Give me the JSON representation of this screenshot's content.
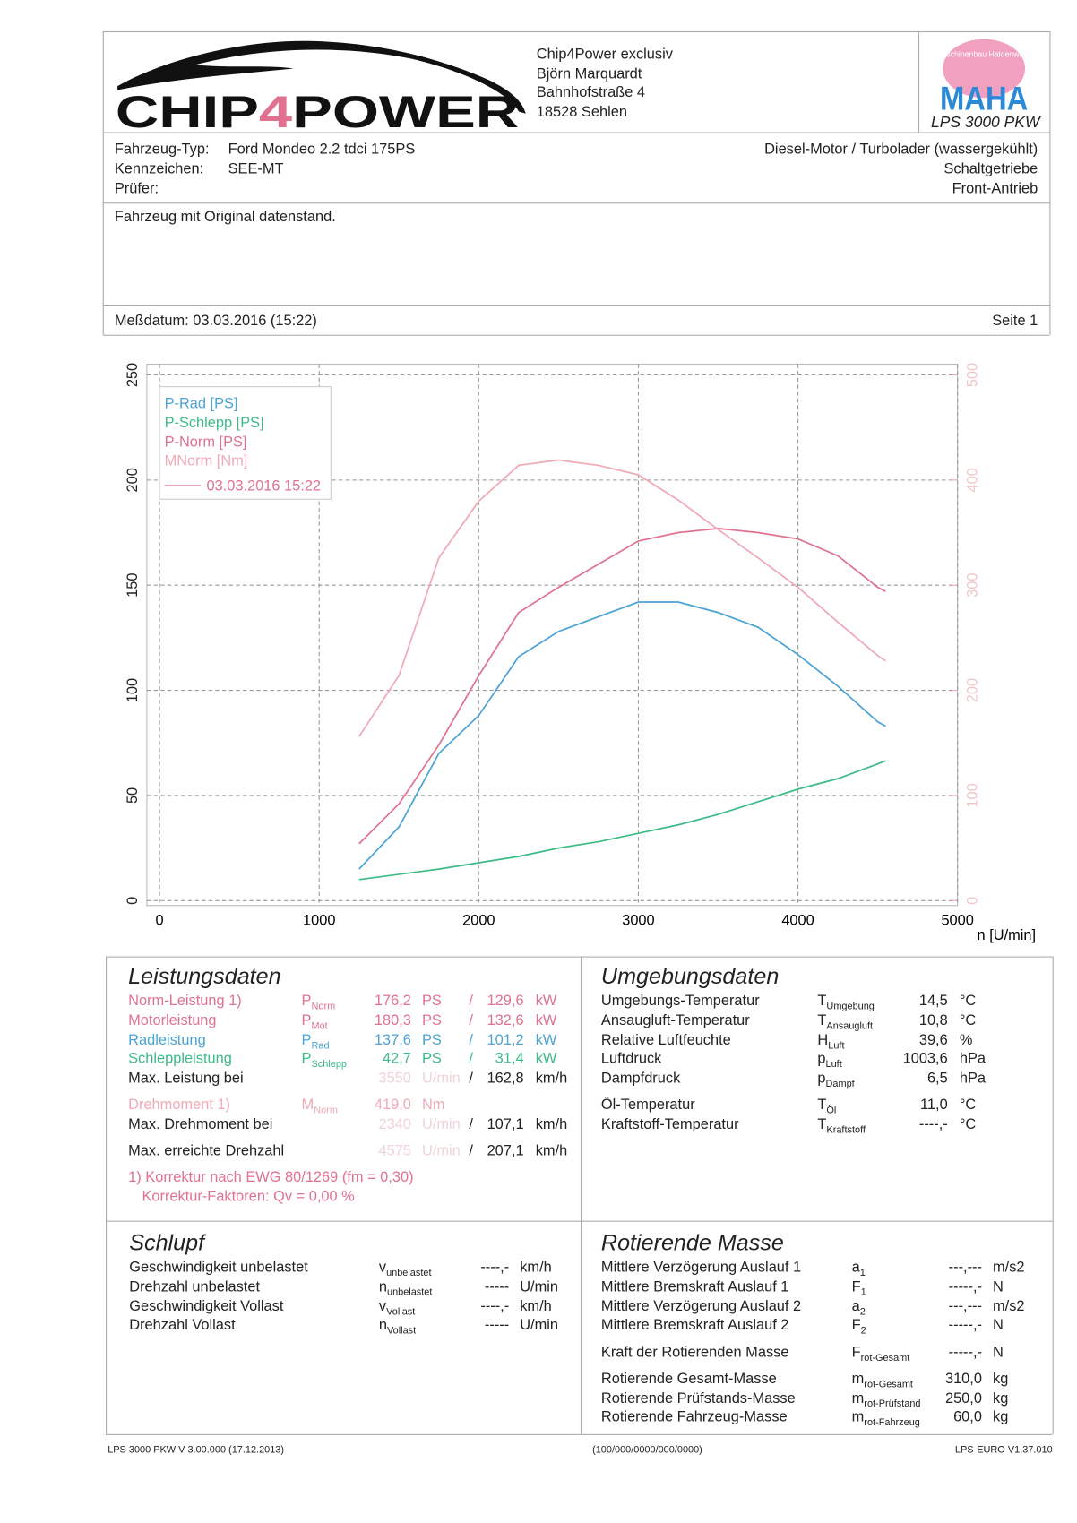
{
  "header": {
    "logo": {
      "parts": [
        "CHIP",
        "4",
        "POWER"
      ]
    },
    "company_lines": [
      "Chip4Power exclusiv",
      "Björn Marquardt",
      "Bahnhofstraße 4",
      "18528 Sehlen"
    ],
    "maha_ring": "Maschinenbau Haldenwang",
    "maha": "MAHA",
    "device": "LPS 3000 PKW"
  },
  "vehicle": {
    "labels": [
      "Fahrzeug-Typ:",
      "Kennzeichen:",
      "Prüfer:"
    ],
    "values": [
      "Ford Mondeo 2.2 tdci 175PS",
      "SEE-MT"
    ],
    "right": [
      "Diesel-Motor / Turbolader (wassergekühlt)",
      "Schaltgetriebe",
      "Front-Antrieb"
    ]
  },
  "note": "Fahrzeug mit Original datenstand.",
  "date_line": "Meßdatum: 03.03.2016 (15:22)",
  "page": "Seite 1",
  "chart_data": {
    "type": "line",
    "x_label": "n [U/min]",
    "x": [
      1250,
      1500,
      1750,
      2000,
      2250,
      2500,
      2750,
      3000,
      3250,
      3500,
      3750,
      4000,
      4250,
      4500,
      4550
    ],
    "xlim": [
      0,
      5000
    ],
    "xticks": [
      0,
      1000,
      2000,
      3000,
      4000,
      5000
    ],
    "ylim": [
      0,
      250
    ],
    "yticks": [
      0,
      50,
      100,
      150,
      200,
      250
    ],
    "y2lim": [
      0,
      500
    ],
    "y2ticks": [
      0,
      100,
      200,
      300,
      400,
      500
    ],
    "grid": true,
    "series": [
      {
        "name": "P-Rad [PS]",
        "color": "#4ba3d6",
        "values": [
          15,
          35,
          70,
          88,
          116,
          128,
          135,
          142,
          142,
          137,
          130,
          117,
          102,
          85,
          83
        ]
      },
      {
        "name": "P-Schlepp [PS]",
        "color": "#3dbb86",
        "values": [
          10,
          12.5,
          15,
          18,
          21,
          25,
          28,
          32,
          36,
          41,
          47,
          53,
          58,
          65,
          66.5
        ]
      },
      {
        "name": "P-Norm [PS]",
        "color": "#e0728f",
        "values": [
          27,
          46,
          74,
          107,
          137,
          149,
          160,
          171,
          175,
          177,
          175,
          172,
          164,
          149,
          147
        ]
      },
      {
        "name": "MNorm [Nm]",
        "color": "#f0aab6",
        "axis": "y2",
        "values": [
          156,
          214,
          326,
          380,
          414,
          419,
          414,
          405,
          381,
          353,
          326,
          298,
          265,
          233,
          228
        ]
      }
    ],
    "legend_run": "03.03.2016 15:22"
  },
  "leistung": {
    "title": "Leistungsdaten",
    "rows": [
      {
        "label": "Norm-Leistung 1)",
        "sym": "P",
        "sub": "Norm",
        "value": "176,2",
        "unit": "PS",
        "sep": "/",
        "value2": "129,6",
        "unit2": "kW",
        "color": "#e0728f"
      },
      {
        "label": "Motorleistung",
        "sym": "P",
        "sub": "Mot",
        "value": "180,3",
        "unit": "PS",
        "sep": "/",
        "value2": "132,6",
        "unit2": "kW",
        "color": "#e0728f"
      },
      {
        "label": "Radleistung",
        "sym": "P",
        "sub": "Rad",
        "value": "137,6",
        "unit": "PS",
        "sep": "/",
        "value2": "101,2",
        "unit2": "kW",
        "color": "#4ba3d6"
      },
      {
        "label": "Schleppleistung",
        "sym": "P",
        "sub": "Schlepp",
        "value": "42,7",
        "unit": "PS",
        "sep": "/",
        "value2": "31,4",
        "unit2": "kW",
        "color": "#3dbb86"
      },
      {
        "label": "Max. Leistung bei",
        "value": "3550",
        "unit": "U/min",
        "sep": "/",
        "value2": "162,8",
        "unit2": "km/h",
        "value_color": "#f0d4d8"
      },
      {
        "label": "Drehmoment 1)",
        "sym": "M",
        "sub": "Norm",
        "value": "419,0",
        "unit": "Nm",
        "color": "#f0aab6"
      },
      {
        "label": "Max. Drehmoment bei",
        "value": "2340",
        "unit": "U/min",
        "sep": "/",
        "value2": "107,1",
        "unit2": "km/h",
        "value_color": "#f0d4d8"
      },
      {
        "label": "Max. erreichte Drehzahl",
        "value": "4575",
        "unit": "U/min",
        "sep": "/",
        "value2": "207,1",
        "unit2": "km/h",
        "value_color": "#f0d4d8"
      }
    ],
    "footnotes": [
      "1) Korrektur nach EWG 80/1269 (fm = 0,30)",
      "Korrektur-Faktoren: Qv = 0,00 %"
    ]
  },
  "umgebung": {
    "title": "Umgebungsdaten",
    "rows": [
      {
        "label": "Umgebungs-Temperatur",
        "sym": "T",
        "sub": "Umgebung",
        "value": "14,5",
        "unit": "°C"
      },
      {
        "label": "Ansaugluft-Temperatur",
        "sym": "T",
        "sub": "Ansaugluft",
        "value": "10,8",
        "unit": "°C"
      },
      {
        "label": "Relative Luftfeuchte",
        "sym": "H",
        "sub": "Luft",
        "value": "39,6",
        "unit": "%"
      },
      {
        "label": "Luftdruck",
        "sym": "p",
        "sub": "Luft",
        "value": "1003,6",
        "unit": "hPa"
      },
      {
        "label": "Dampfdruck",
        "sym": "p",
        "sub": "Dampf",
        "value": "6,5",
        "unit": "hPa"
      },
      {
        "label": "Öl-Temperatur",
        "sym": "T",
        "sub": "Öl",
        "value": "11,0",
        "unit": "°C"
      },
      {
        "label": "Kraftstoff-Temperatur",
        "sym": "T",
        "sub": "Kraftstoff",
        "value": "----,-",
        "unit": "°C"
      }
    ]
  },
  "schlupf": {
    "title": "Schlupf",
    "rows": [
      {
        "label": "Geschwindigkeit unbelastet",
        "sym": "v",
        "sub": "unbelastet",
        "value": "----,-",
        "unit": "km/h"
      },
      {
        "label": "Drehzahl unbelastet",
        "sym": "n",
        "sub": "unbelastet",
        "value": "-----",
        "unit": "U/min"
      },
      {
        "label": "Geschwindigkeit Vollast",
        "sym": "v",
        "sub": "Vollast",
        "value": "----,-",
        "unit": "km/h"
      },
      {
        "label": "Drehzahl Vollast",
        "sym": "n",
        "sub": "Vollast",
        "value": "-----",
        "unit": "U/min"
      }
    ]
  },
  "rotierend": {
    "title": "Rotierende Masse",
    "rows": [
      {
        "label": "Mittlere Verzögerung Auslauf 1",
        "sym": "a",
        "sub": "1",
        "value": "---,---",
        "unit": "m/s2"
      },
      {
        "label": "Mittlere Bremskraft Auslauf 1",
        "sym": "F",
        "sub": "1",
        "value": "-----,-",
        "unit": "N"
      },
      {
        "label": "Mittlere Verzögerung Auslauf 2",
        "sym": "a",
        "sub": "2",
        "value": "---,---",
        "unit": "m/s2"
      },
      {
        "label": "Mittlere Bremskraft Auslauf 2",
        "sym": "F",
        "sub": "2",
        "value": "-----,-",
        "unit": "N"
      },
      {
        "label": "Kraft der Rotierenden Masse",
        "sym": "F",
        "sub": "rot-Gesamt",
        "value": "-----,-",
        "unit": "N"
      },
      {
        "label": "Rotierende Gesamt-Masse",
        "sym": "m",
        "sub": "rot-Gesamt",
        "value": "310,0",
        "unit": "kg"
      },
      {
        "label": "Rotierende Prüfstands-Masse",
        "sym": "m",
        "sub": "rot-Prüfstand",
        "value": "250,0",
        "unit": "kg"
      },
      {
        "label": "Rotierende Fahrzeug-Masse",
        "sym": "m",
        "sub": "rot-Fahrzeug",
        "value": "60,0",
        "unit": "kg"
      }
    ]
  },
  "footer": {
    "left": "LPS 3000 PKW V 3.00.000 (17.12.2013)",
    "center": "(100/000/0000/000/0000)",
    "right": "LPS-EURO V1.37.010"
  }
}
